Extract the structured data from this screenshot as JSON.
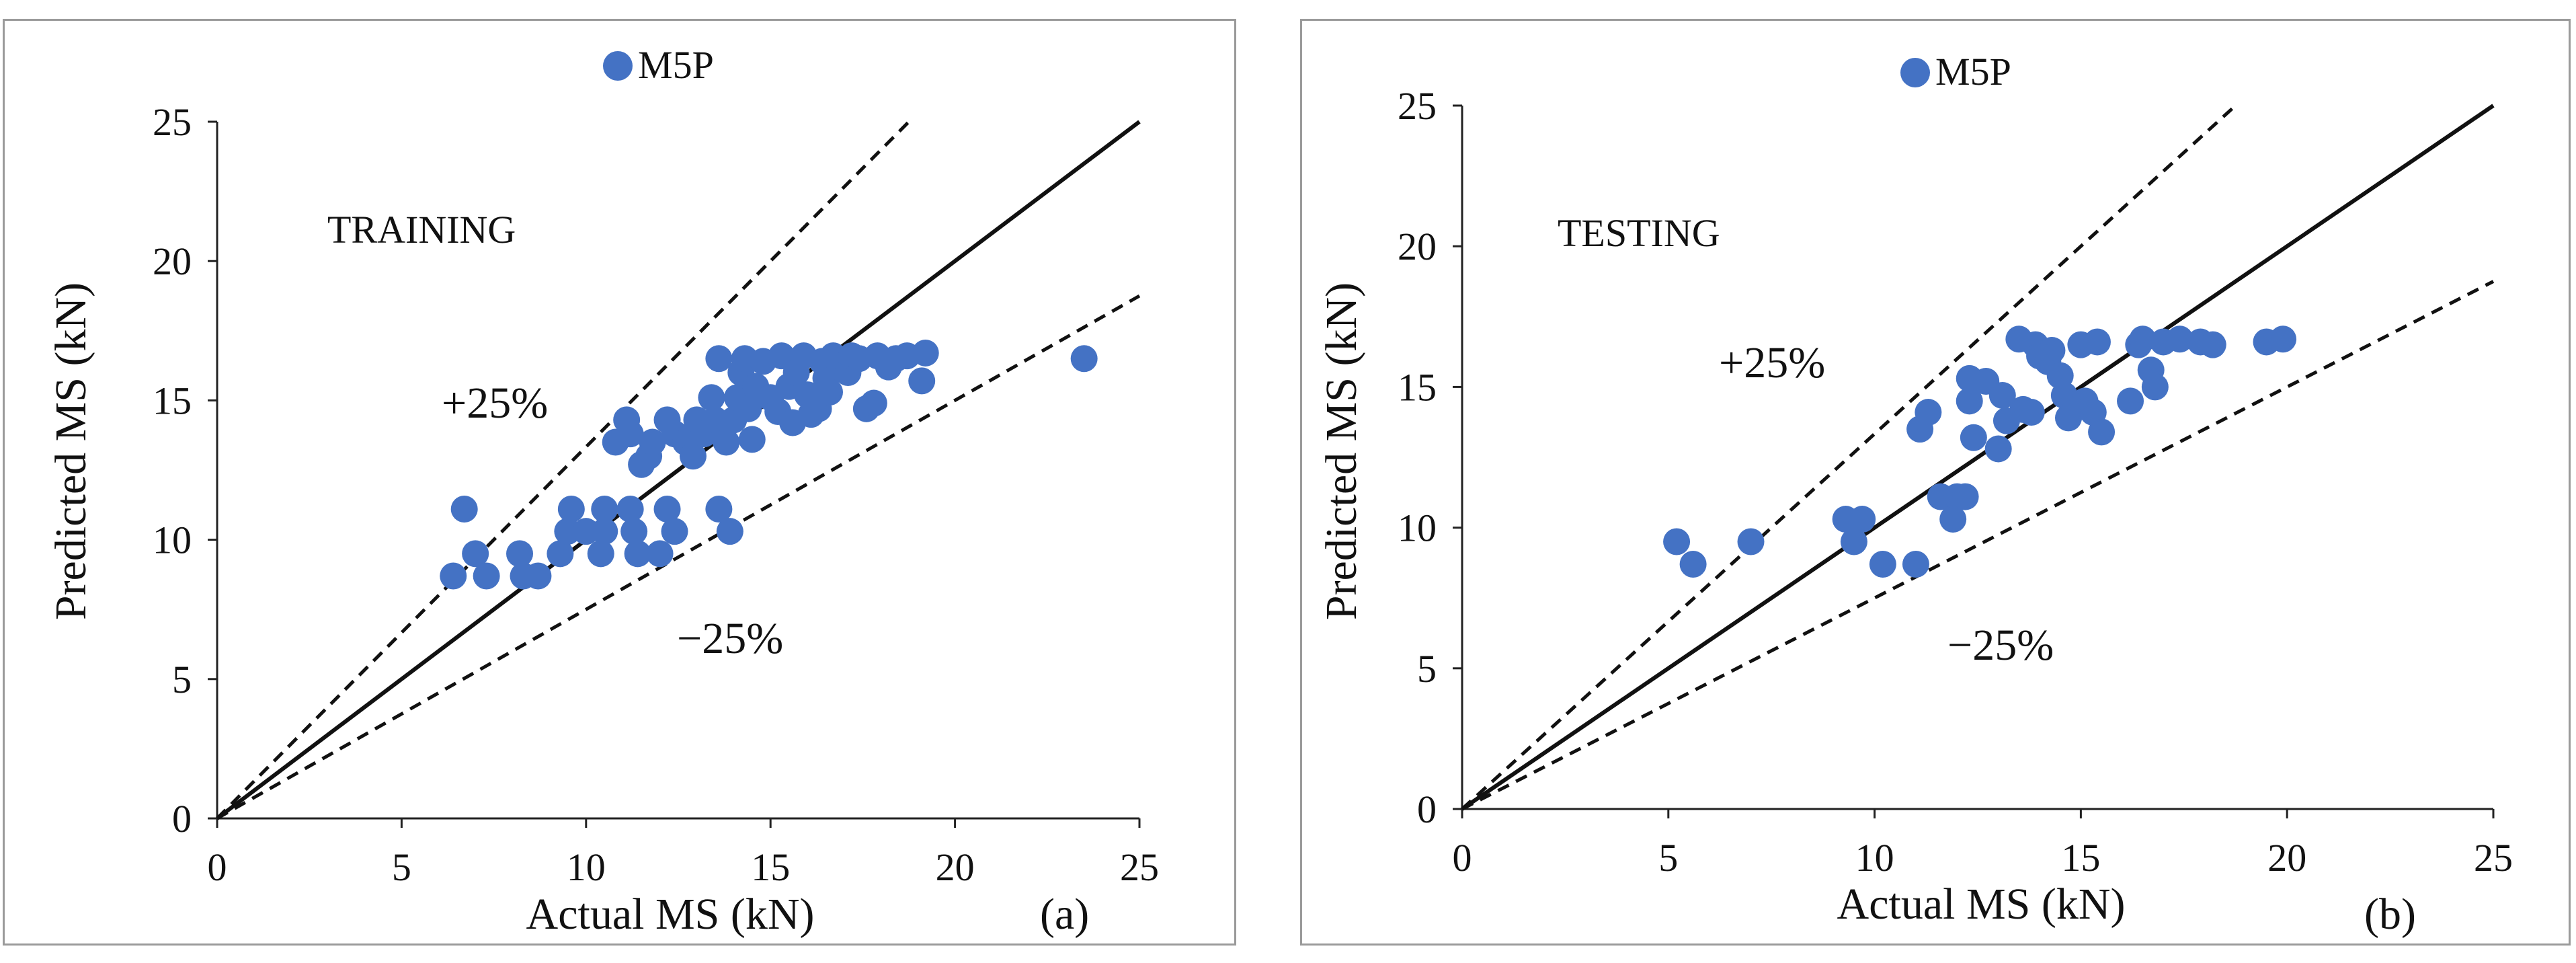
{
  "chart_data": [
    {
      "type": "scatter",
      "panel_label": "(a)",
      "annotation": "TRAINING",
      "legend": "M5P",
      "series_color": "#4472C4",
      "xlabel": "Actual MS (kN)",
      "ylabel": "Predicted MS (kN)",
      "xlim": [
        0,
        25
      ],
      "ylim": [
        0,
        25
      ],
      "xticks": [
        "0",
        "5",
        "10",
        "15",
        "20",
        "25"
      ],
      "yticks": [
        "0",
        "5",
        "10",
        "15",
        "20",
        "25"
      ],
      "band_upper_label": "+25%",
      "band_lower_label": "−25%",
      "reference_lines": [
        {
          "name": "line-of-equality",
          "slope": 1.0,
          "style": "solid"
        },
        {
          "name": "upper-25pct",
          "slope": 1.3333,
          "style": "dashed"
        },
        {
          "name": "lower-25pct",
          "slope": 0.75,
          "style": "dashed"
        }
      ],
      "points": [
        [
          6.4,
          8.7
        ],
        [
          6.7,
          11.1
        ],
        [
          7.0,
          9.5
        ],
        [
          7.3,
          8.7
        ],
        [
          8.2,
          9.5
        ],
        [
          8.3,
          8.7
        ],
        [
          8.7,
          8.7
        ],
        [
          9.3,
          9.5
        ],
        [
          9.5,
          10.3
        ],
        [
          9.6,
          11.1
        ],
        [
          10.0,
          10.3
        ],
        [
          10.4,
          9.5
        ],
        [
          10.5,
          11.1
        ],
        [
          10.5,
          10.3
        ],
        [
          10.8,
          13.5
        ],
        [
          11.1,
          14.3
        ],
        [
          11.2,
          13.8
        ],
        [
          11.2,
          11.1
        ],
        [
          11.3,
          10.3
        ],
        [
          11.4,
          9.5
        ],
        [
          11.5,
          12.7
        ],
        [
          11.7,
          13.0
        ],
        [
          11.8,
          13.5
        ],
        [
          12.0,
          9.5
        ],
        [
          12.2,
          11.1
        ],
        [
          12.2,
          14.3
        ],
        [
          12.4,
          13.8
        ],
        [
          12.4,
          10.3
        ],
        [
          12.7,
          13.5
        ],
        [
          12.9,
          13.0
        ],
        [
          13.0,
          14.3
        ],
        [
          13.2,
          13.8
        ],
        [
          13.4,
          15.1
        ],
        [
          13.5,
          14.3
        ],
        [
          13.6,
          16.5
        ],
        [
          13.6,
          11.1
        ],
        [
          13.8,
          13.5
        ],
        [
          13.9,
          10.3
        ],
        [
          14.0,
          14.3
        ],
        [
          14.1,
          15.1
        ],
        [
          14.2,
          16.0
        ],
        [
          14.3,
          16.5
        ],
        [
          14.4,
          14.7
        ],
        [
          14.5,
          13.6
        ],
        [
          14.6,
          15.5
        ],
        [
          14.8,
          16.4
        ],
        [
          15.0,
          15.1
        ],
        [
          15.2,
          14.6
        ],
        [
          15.3,
          16.6
        ],
        [
          15.5,
          15.5
        ],
        [
          15.6,
          14.2
        ],
        [
          15.7,
          16.0
        ],
        [
          15.9,
          16.6
        ],
        [
          16.0,
          15.2
        ],
        [
          16.1,
          14.5
        ],
        [
          16.3,
          14.7
        ],
        [
          16.4,
          16.4
        ],
        [
          16.5,
          15.8
        ],
        [
          16.6,
          15.3
        ],
        [
          16.7,
          16.6
        ],
        [
          16.9,
          16.4
        ],
        [
          17.1,
          16.0
        ],
        [
          17.2,
          16.6
        ],
        [
          17.4,
          16.5
        ],
        [
          17.6,
          14.7
        ],
        [
          17.8,
          14.9
        ],
        [
          17.9,
          16.6
        ],
        [
          18.2,
          16.2
        ],
        [
          18.4,
          16.5
        ],
        [
          18.7,
          16.6
        ],
        [
          19.1,
          15.7
        ],
        [
          19.2,
          16.7
        ],
        [
          23.5,
          16.5
        ]
      ]
    },
    {
      "type": "scatter",
      "panel_label": "(b)",
      "annotation": "TESTING",
      "legend": "M5P",
      "series_color": "#4472C4",
      "xlabel": "Actual MS (kN)",
      "ylabel": "Predicted MS (kN)",
      "xlim": [
        0,
        25
      ],
      "ylim": [
        0,
        25
      ],
      "xticks": [
        "0",
        "5",
        "10",
        "15",
        "20",
        "25"
      ],
      "yticks": [
        "0",
        "5",
        "10",
        "15",
        "20",
        "25"
      ],
      "band_upper_label": "+25%",
      "band_lower_label": "−25%",
      "reference_lines": [
        {
          "name": "line-of-equality",
          "slope": 1.0,
          "style": "solid"
        },
        {
          "name": "upper-25pct",
          "slope": 1.3333,
          "style": "dashed"
        },
        {
          "name": "lower-25pct",
          "slope": 0.75,
          "style": "dashed"
        }
      ],
      "points": [
        [
          5.2,
          9.5
        ],
        [
          5.6,
          8.7
        ],
        [
          7.0,
          9.5
        ],
        [
          9.3,
          10.3
        ],
        [
          9.5,
          9.5
        ],
        [
          9.7,
          10.3
        ],
        [
          10.2,
          8.7
        ],
        [
          11.0,
          8.7
        ],
        [
          11.1,
          13.5
        ],
        [
          11.3,
          14.1
        ],
        [
          11.6,
          11.1
        ],
        [
          11.9,
          10.3
        ],
        [
          12.0,
          11.1
        ],
        [
          12.2,
          11.1
        ],
        [
          12.3,
          14.5
        ],
        [
          12.3,
          15.3
        ],
        [
          12.4,
          13.2
        ],
        [
          12.7,
          15.2
        ],
        [
          13.0,
          12.8
        ],
        [
          13.1,
          14.7
        ],
        [
          13.2,
          13.8
        ],
        [
          13.5,
          16.7
        ],
        [
          13.6,
          14.2
        ],
        [
          13.8,
          14.1
        ],
        [
          13.9,
          16.5
        ],
        [
          14.0,
          16.1
        ],
        [
          14.2,
          15.9
        ],
        [
          14.3,
          16.3
        ],
        [
          14.5,
          15.4
        ],
        [
          14.6,
          14.7
        ],
        [
          14.7,
          13.9
        ],
        [
          15.0,
          14.3
        ],
        [
          15.0,
          16.5
        ],
        [
          15.1,
          14.5
        ],
        [
          15.3,
          14.1
        ],
        [
          15.4,
          16.6
        ],
        [
          15.5,
          13.4
        ],
        [
          16.2,
          14.5
        ],
        [
          16.4,
          16.5
        ],
        [
          16.5,
          16.7
        ],
        [
          16.7,
          15.6
        ],
        [
          16.8,
          15.0
        ],
        [
          17.0,
          16.6
        ],
        [
          17.4,
          16.7
        ],
        [
          17.9,
          16.6
        ],
        [
          18.2,
          16.5
        ],
        [
          19.5,
          16.6
        ],
        [
          19.9,
          16.7
        ]
      ]
    }
  ]
}
